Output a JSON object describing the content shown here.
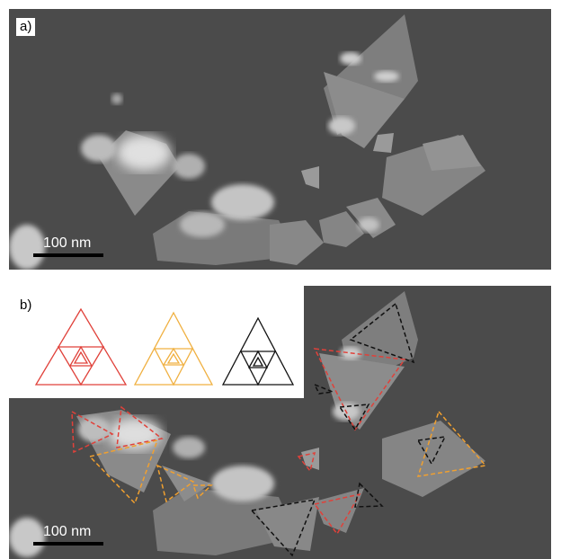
{
  "panel_a": {
    "label": "a)",
    "scale_text": "100 nm"
  },
  "panel_b": {
    "label": "b)",
    "scale_text": "100 nm"
  },
  "legend": {
    "colors": {
      "red": "#e0413a",
      "orange": "#f0a030",
      "black": "#111111"
    }
  },
  "colors": {
    "background": "#4a4a4a",
    "particle": "#8a8a8a",
    "bright": "#d8d8d8",
    "label_bg": "#ffffff"
  }
}
